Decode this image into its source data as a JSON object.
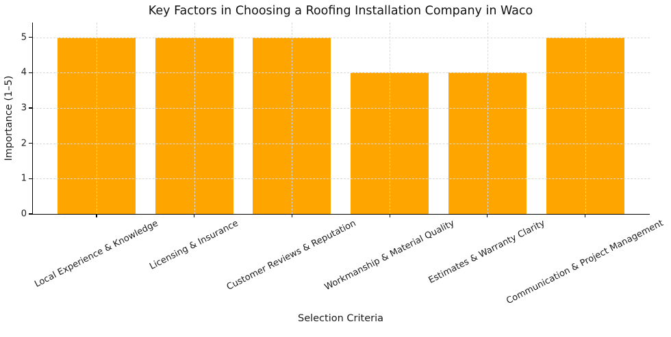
{
  "chart_data": {
    "type": "bar",
    "title": "Key Factors in Choosing a Roofing Installation Company in Waco",
    "xlabel": "Selection Criteria",
    "ylabel": "Importance (1–5)",
    "categories": [
      "Local Experience & Knowledge",
      "Licensing & Insurance",
      "Customer Reviews & Reputation",
      "Workmanship & Material Quality",
      "Estimates & Warranty Clarity",
      "Communication & Project Management"
    ],
    "values": [
      5,
      5,
      5,
      4,
      4,
      5
    ],
    "yticks": [
      0,
      1,
      2,
      3,
      4,
      5
    ],
    "ylim": [
      0,
      5.42
    ],
    "x_tick_rotation_deg": 27,
    "grid": "dashed, horizontal and vertical, drawn over bars",
    "legend": "none",
    "bar_color": "#FFA500"
  },
  "colors": {
    "bar": "#FFA500",
    "grid": "#d9d9d9",
    "axis": "#000000",
    "text": "#1a1a1a",
    "background": "#ffffff"
  }
}
